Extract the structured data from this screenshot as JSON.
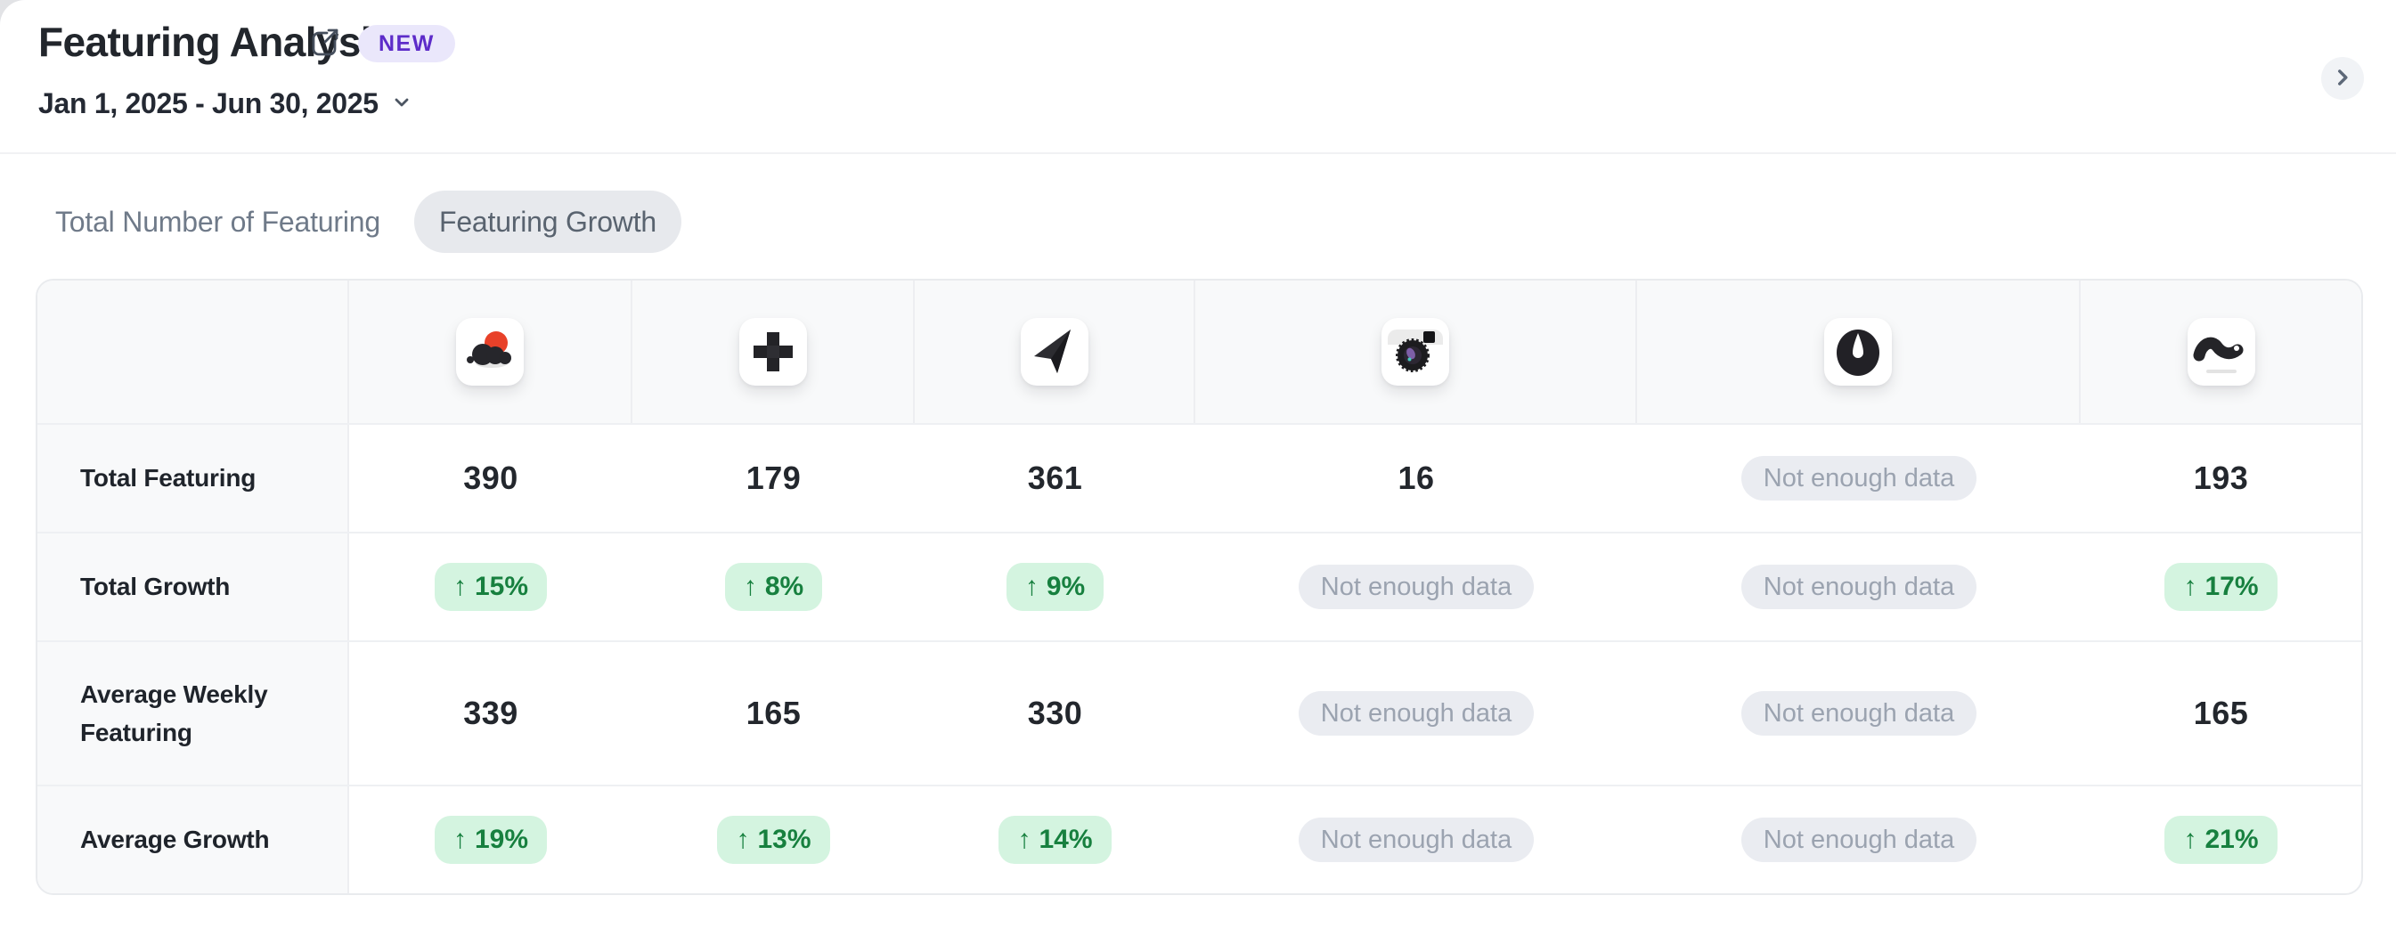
{
  "header": {
    "title": "Featuring Analysis",
    "badge": "NEW",
    "date_range": "Jan 1, 2025 - Jun 30, 2025",
    "icons": [
      "external-link-icon",
      "chevron-down-icon",
      "chevron-right-icon"
    ]
  },
  "tabs": [
    {
      "label": "Total Number of Featuring",
      "selected": false
    },
    {
      "label": "Featuring Growth",
      "selected": true
    }
  ],
  "table": {
    "columns": [
      {
        "icon": "blob-cloud-red-app-icon"
      },
      {
        "icon": "plus-cross-app-icon"
      },
      {
        "icon": "paper-plane-app-icon"
      },
      {
        "icon": "camera-app-icon"
      },
      {
        "icon": "gauge-timer-app-icon"
      },
      {
        "icon": "squiggle-worm-app-icon"
      }
    ],
    "up_arrow": "↑",
    "not_enough_data_label": "Not enough data",
    "rows": [
      {
        "label": "Total Featuring",
        "tall": false,
        "cells": [
          {
            "kind": "number",
            "text": "390"
          },
          {
            "kind": "number",
            "text": "179"
          },
          {
            "kind": "number",
            "text": "361"
          },
          {
            "kind": "number",
            "text": "16"
          },
          {
            "kind": "nodata"
          },
          {
            "kind": "number",
            "text": "193"
          }
        ]
      },
      {
        "label": "Total Growth",
        "tall": false,
        "cells": [
          {
            "kind": "growth",
            "text": "15%"
          },
          {
            "kind": "growth",
            "text": "8%"
          },
          {
            "kind": "growth",
            "text": "9%"
          },
          {
            "kind": "nodata"
          },
          {
            "kind": "nodata"
          },
          {
            "kind": "growth",
            "text": "17%"
          }
        ]
      },
      {
        "label": "Average Weekly Featuring",
        "tall": true,
        "cells": [
          {
            "kind": "number",
            "text": "339"
          },
          {
            "kind": "number",
            "text": "165"
          },
          {
            "kind": "number",
            "text": "330"
          },
          {
            "kind": "nodata"
          },
          {
            "kind": "nodata"
          },
          {
            "kind": "number",
            "text": "165"
          }
        ]
      },
      {
        "label": "Average Growth",
        "tall": false,
        "cells": [
          {
            "kind": "growth",
            "text": "19%"
          },
          {
            "kind": "growth",
            "text": "13%"
          },
          {
            "kind": "growth",
            "text": "14%"
          },
          {
            "kind": "nodata"
          },
          {
            "kind": "nodata"
          },
          {
            "kind": "growth",
            "text": "21%"
          }
        ]
      }
    ]
  },
  "colors": {
    "badge_bg": "#eae7fb",
    "badge_text": "#5d2cc9",
    "growth_bg": "#d4f4e0",
    "growth_text": "#17803f",
    "nodata_bg": "#eaecf1",
    "nodata_text": "#9ba3b0",
    "tab_selected_bg": "#e7e9ed",
    "tab_text": "#6f7a89",
    "table_border": "#e9ebee",
    "label_col_bg": "#f8f9fa",
    "red_icon_accent": "#e84129"
  }
}
